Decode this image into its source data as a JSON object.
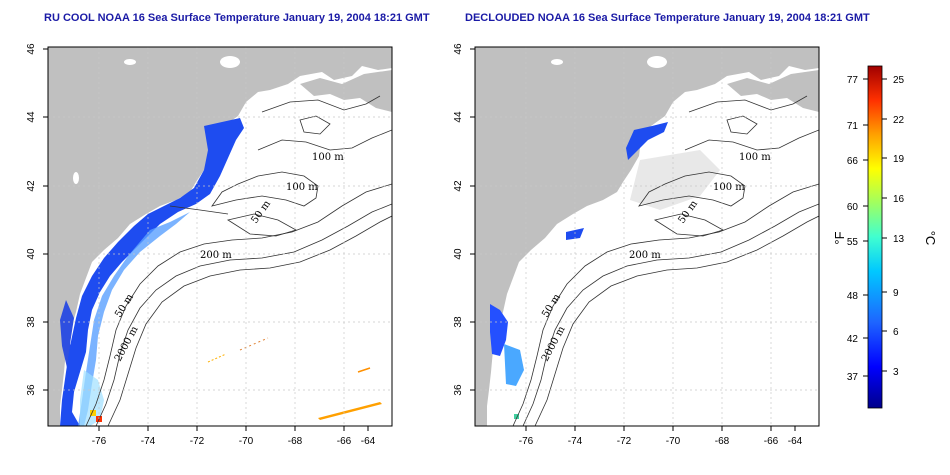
{
  "panels": [
    {
      "id": "left",
      "title": "RU COOL NOAA 16 Sea Surface Temperature January 19, 2004 18:21 GMT",
      "contour_labels": [
        "100 m",
        "100 m",
        "50 m",
        "200 m",
        "50 m",
        "2000 m"
      ]
    },
    {
      "id": "right",
      "title": "DECLOUDED NOAA 16 Sea Surface Temperature January 19, 2004 18:21 GMT",
      "contour_labels": [
        "100 m",
        "100 m",
        "50 m",
        "200 m",
        "50 m",
        "2000 m"
      ]
    }
  ],
  "axes": {
    "x_ticks": [
      "-76",
      "-74",
      "-72",
      "-70",
      "-68",
      "-66",
      "-64"
    ],
    "y_ticks": [
      "36",
      "38",
      "40",
      "42",
      "44",
      "46"
    ],
    "x_range": [
      -77.2,
      -63
    ],
    "y_range": [
      35,
      46
    ]
  },
  "colorbar": {
    "fahrenheit_ticks": [
      "77",
      "71",
      "66",
      "60",
      "55",
      "48",
      "42",
      "37"
    ],
    "celsius_ticks": [
      "25",
      "22",
      "19",
      "16",
      "13",
      "9",
      "6",
      "3"
    ],
    "left_unit": "°F",
    "right_unit": "°C",
    "colors": [
      "#00008b",
      "#0000ff",
      "#1e64ff",
      "#00c8ff",
      "#40ffd0",
      "#a0ff60",
      "#ffff00",
      "#ffa000",
      "#ff3000",
      "#a00000"
    ]
  },
  "style": {
    "land_color": "#c0c0c0",
    "title_color": "#1a1aa6"
  }
}
